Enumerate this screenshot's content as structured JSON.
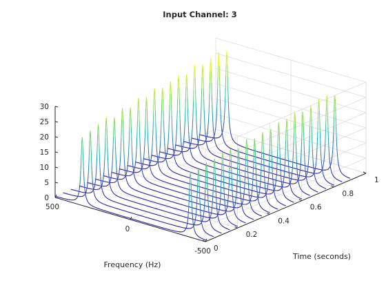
{
  "chart_data": {
    "type": "waterfall",
    "title": "Input Channel: 3",
    "xlabel": "Frequency (Hz)",
    "ylabel": "Time (seconds)",
    "zlabel": "",
    "xlim": [
      -500,
      500
    ],
    "ylim": [
      0,
      1
    ],
    "zlim": [
      0,
      30
    ],
    "x_ticks": [
      "500",
      "0",
      "-500"
    ],
    "y_ticks": [
      "0",
      "0.2",
      "0.4",
      "0.6",
      "0.8",
      "1"
    ],
    "z_ticks": [
      "0",
      "5",
      "10",
      "15",
      "20",
      "25",
      "30"
    ],
    "grid": true,
    "peaks": [
      {
        "frequency": 320,
        "width": 12
      },
      {
        "frequency": -400,
        "width": 12
      }
    ],
    "series": [
      {
        "time": 0.0,
        "peak_values": [
          22,
          21
        ]
      },
      {
        "time": 0.05,
        "peak_values": [
          23,
          21
        ]
      },
      {
        "time": 0.1,
        "peak_values": [
          24,
          22
        ]
      },
      {
        "time": 0.15,
        "peak_values": [
          25,
          22
        ]
      },
      {
        "time": 0.2,
        "peak_values": [
          24,
          23
        ]
      },
      {
        "time": 0.25,
        "peak_values": [
          26,
          23
        ]
      },
      {
        "time": 0.3,
        "peak_values": [
          25,
          22
        ]
      },
      {
        "time": 0.35,
        "peak_values": [
          27,
          24
        ]
      },
      {
        "time": 0.4,
        "peak_values": [
          26,
          23
        ]
      },
      {
        "time": 0.45,
        "peak_values": [
          28,
          24
        ]
      },
      {
        "time": 0.5,
        "peak_values": [
          27,
          24
        ]
      },
      {
        "time": 0.55,
        "peak_values": [
          28,
          25
        ]
      },
      {
        "time": 0.6,
        "peak_values": [
          29,
          25
        ]
      },
      {
        "time": 0.65,
        "peak_values": [
          28,
          26
        ]
      },
      {
        "time": 0.7,
        "peak_values": [
          30,
          25
        ]
      },
      {
        "time": 0.75,
        "peak_values": [
          29,
          26
        ]
      },
      {
        "time": 0.8,
        "peak_values": [
          30,
          27
        ]
      },
      {
        "time": 0.85,
        "peak_values": [
          31,
          27
        ]
      },
      {
        "time": 0.9,
        "peak_values": [
          30,
          26
        ]
      }
    ],
    "colors": {
      "low": "#3e26a8",
      "mid": "#17b2b2",
      "high": "#f9fb15",
      "grid": "#dcdcdc",
      "axis": "#262626"
    }
  }
}
